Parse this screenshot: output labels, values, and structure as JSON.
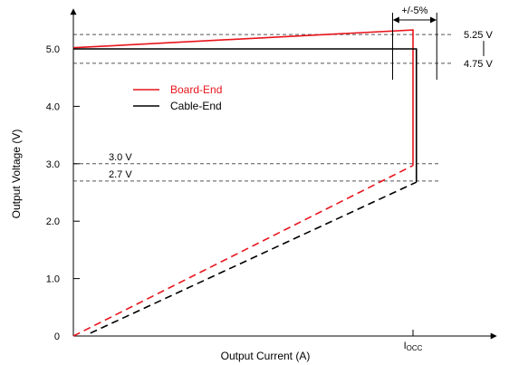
{
  "chart_data": {
    "type": "line",
    "xlabel": "Output Current (A)",
    "ylabel": "Output Voltage (V)",
    "xlim": [
      0,
      1.1
    ],
    "ylim": [
      0,
      5.6
    ],
    "y_ticks": [
      {
        "value": 0,
        "label": "0"
      },
      {
        "value": 1.0,
        "label": "1.0"
      },
      {
        "value": 2.0,
        "label": "2.0"
      },
      {
        "value": 3.0,
        "label": "3.0"
      },
      {
        "value": 4.0,
        "label": "4.0"
      },
      {
        "value": 5.0,
        "label": "5.0"
      }
    ],
    "x_ticks": [
      {
        "value": 1.0,
        "label_main": "I",
        "label_sub": "OCC"
      }
    ],
    "grid": false,
    "legend_position": "upper-left",
    "series": [
      {
        "name": "Board-End",
        "color": "#e8141c",
        "solid": [
          [
            0,
            5.02
          ],
          [
            1.0,
            5.33
          ],
          [
            1.0,
            2.97
          ]
        ],
        "dashed": [
          [
            0,
            0
          ],
          [
            1.0,
            2.97
          ]
        ]
      },
      {
        "name": "Cable-End",
        "color": "#000000",
        "solid": [
          [
            0,
            5.0
          ],
          [
            1.01,
            5.0
          ],
          [
            1.01,
            2.68
          ]
        ],
        "dashed": [
          [
            0.05,
            0.05
          ],
          [
            1.01,
            2.68
          ]
        ]
      }
    ],
    "reference_lines": [
      {
        "y": 5.25,
        "label": "5.25 V",
        "label_side": "right"
      },
      {
        "y": 4.75,
        "label": "4.75 V",
        "label_side": "right"
      },
      {
        "y": 3.0,
        "label": "3.0 V",
        "label_side": "left"
      },
      {
        "y": 2.7,
        "label": "2.7 V",
        "label_side": "left"
      }
    ],
    "annotations": [
      {
        "text": "+/-5%",
        "x_from": 0.94,
        "x_to": 1.07
      }
    ]
  }
}
